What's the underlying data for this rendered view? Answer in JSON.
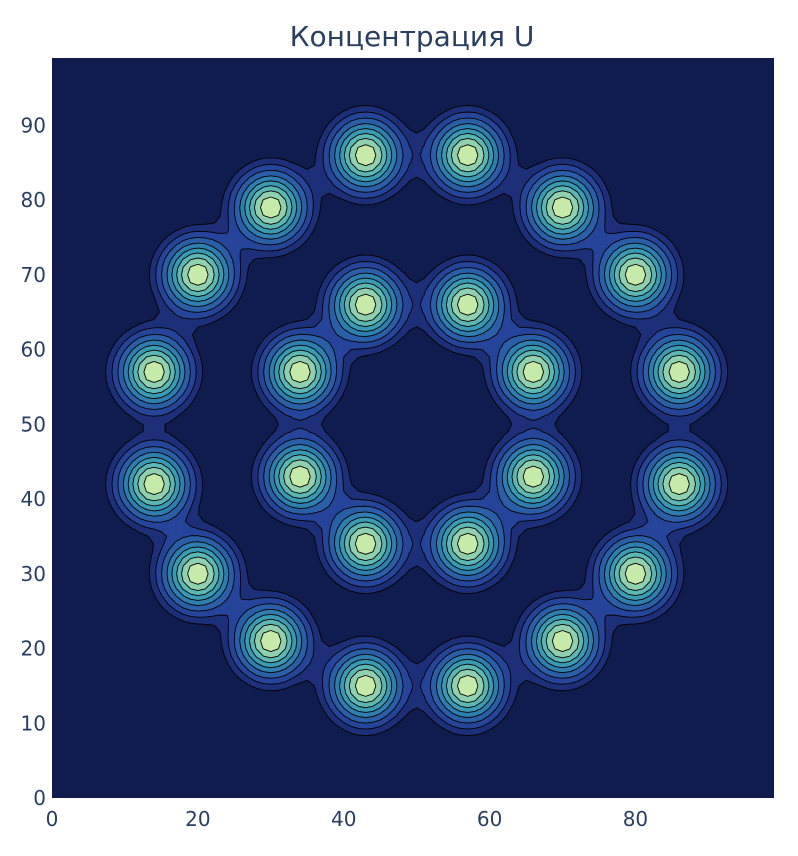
{
  "chart_data": {
    "type": "contour",
    "title": "Концентрация U",
    "xlabel": "",
    "ylabel": "",
    "xlim": [
      0,
      99
    ],
    "ylim": [
      0,
      99
    ],
    "x_ticks": [
      "0",
      "20",
      "40",
      "60",
      "80"
    ],
    "x_tick_values": [
      0,
      20,
      40,
      60,
      80
    ],
    "y_ticks": [
      "0",
      "10",
      "20",
      "30",
      "40",
      "50",
      "60",
      "70",
      "80",
      "90"
    ],
    "y_tick_values": [
      0,
      10,
      20,
      30,
      40,
      50,
      60,
      70,
      80,
      90
    ],
    "grid": false,
    "colorscale": [
      "#0f1c4d",
      "#1e2f7a",
      "#25449a",
      "#2a5fa8",
      "#2f7eb0",
      "#3a9ab4",
      "#5cb6b3",
      "#8fd0b0",
      "#c6eaa9",
      "#e9f7b3"
    ],
    "contour_levels": [
      0.12,
      0.2,
      0.3,
      0.42,
      0.54,
      0.66,
      0.78,
      0.9
    ],
    "outer_ring_spots": [
      {
        "x": 43,
        "y": 86
      },
      {
        "x": 57,
        "y": 86
      },
      {
        "x": 70,
        "y": 79
      },
      {
        "x": 80,
        "y": 70
      },
      {
        "x": 86,
        "y": 57
      },
      {
        "x": 86,
        "y": 42
      },
      {
        "x": 80,
        "y": 30
      },
      {
        "x": 70,
        "y": 21
      },
      {
        "x": 57,
        "y": 15
      },
      {
        "x": 43,
        "y": 15
      },
      {
        "x": 30,
        "y": 21
      },
      {
        "x": 20,
        "y": 30
      },
      {
        "x": 14,
        "y": 42
      },
      {
        "x": 14,
        "y": 57
      },
      {
        "x": 20,
        "y": 70
      },
      {
        "x": 30,
        "y": 79
      }
    ],
    "inner_ring_spots": [
      {
        "x": 43,
        "y": 66
      },
      {
        "x": 57,
        "y": 66
      },
      {
        "x": 66,
        "y": 57
      },
      {
        "x": 66,
        "y": 43
      },
      {
        "x": 57,
        "y": 34
      },
      {
        "x": 43,
        "y": 34
      },
      {
        "x": 34,
        "y": 43
      },
      {
        "x": 34,
        "y": 57
      }
    ]
  }
}
